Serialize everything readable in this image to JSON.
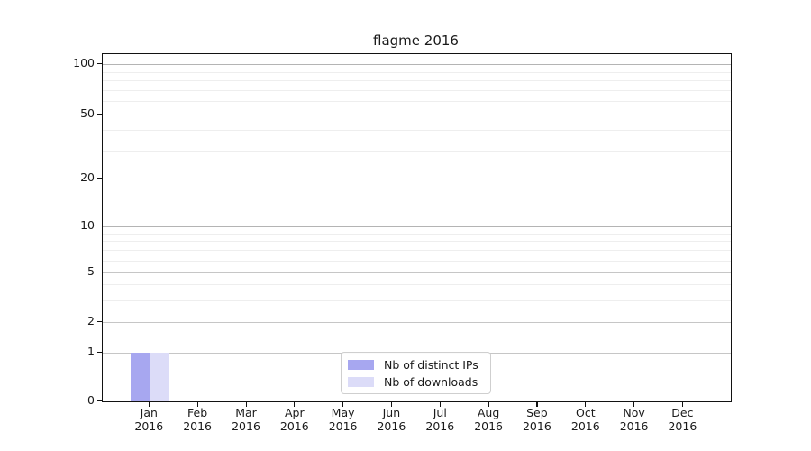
{
  "title": "flagme 2016",
  "chart_data": {
    "type": "bar",
    "title": "flagme 2016",
    "xlabel": "",
    "ylabel": "",
    "categories": [
      "Jan 2016",
      "Feb 2016",
      "Mar 2016",
      "Apr 2016",
      "May 2016",
      "Jun 2016",
      "Jul 2016",
      "Aug 2016",
      "Sep 2016",
      "Oct 2016",
      "Nov 2016",
      "Dec 2016"
    ],
    "series": [
      {
        "name": "Nb of distinct IPs",
        "color": "#a7a7f0",
        "values": [
          1,
          0,
          0,
          0,
          0,
          0,
          0,
          0,
          0,
          0,
          0,
          0
        ]
      },
      {
        "name": "Nb of downloads",
        "color": "#dcdcf8",
        "values": [
          1,
          0,
          0,
          0,
          0,
          0,
          0,
          0,
          0,
          0,
          0,
          0
        ]
      }
    ],
    "yscale": "symlog",
    "y_ticks": [
      0,
      1,
      2,
      5,
      10,
      20,
      50,
      100
    ],
    "y_minor_ticks": [
      3,
      4,
      6,
      7,
      8,
      9,
      30,
      40,
      60,
      70,
      80,
      90
    ],
    "ylim": [
      0,
      110
    ],
    "grid": "horizontal major and minor gridlines",
    "legend_position": "lower center inside plot"
  },
  "colors": {
    "bar_distinct_ips": "#a7a7f0",
    "bar_downloads": "#dcdcf8",
    "axis_spine": "#121212",
    "grid_major": "#c6c6c6",
    "grid_minor": "#eeeeee",
    "text": "#1a1a1a",
    "background": "#ffffff"
  }
}
